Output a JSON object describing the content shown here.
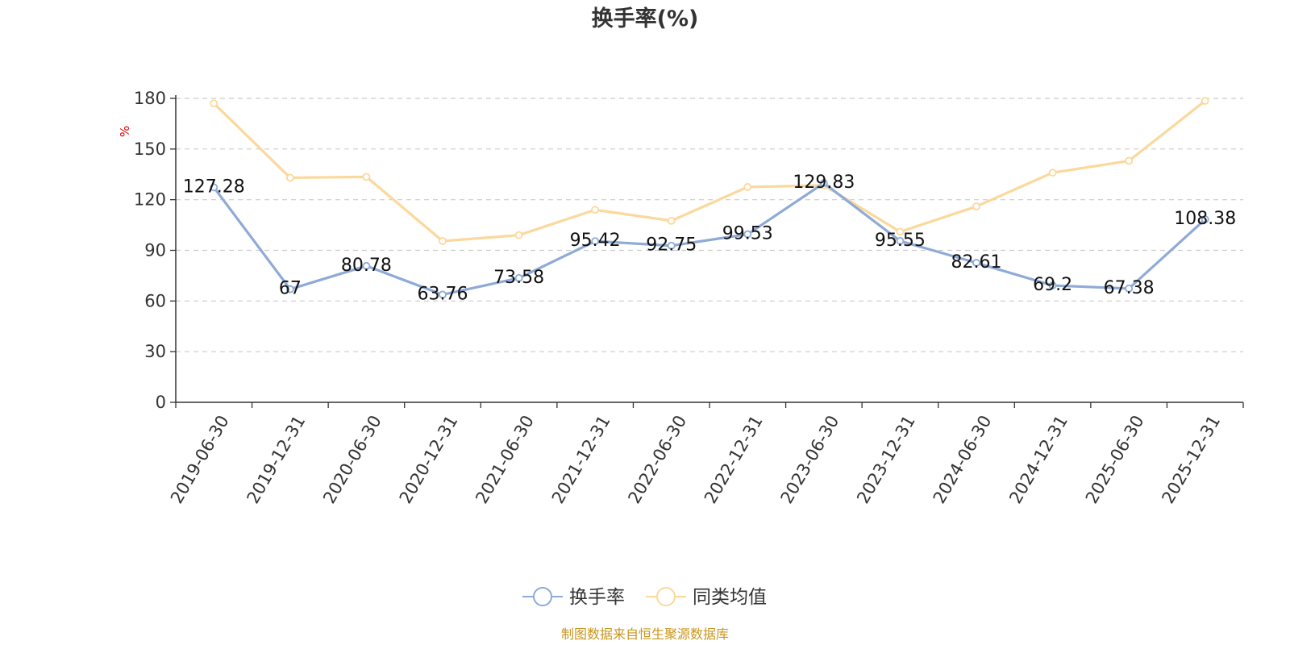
{
  "chart_data": {
    "type": "line",
    "title": "换手率(%)",
    "ylabel": "%",
    "xlabel": "",
    "ylim": [
      0,
      180
    ],
    "yticks": [
      0,
      30,
      60,
      90,
      120,
      150,
      180
    ],
    "grid": true,
    "legend_position": "bottom-center",
    "categories": [
      "2019-06-30",
      "2019-12-31",
      "2020-06-30",
      "2020-12-31",
      "2021-06-30",
      "2021-12-31",
      "2022-06-30",
      "2022-12-31",
      "2023-06-30",
      "2023-12-31",
      "2024-06-30",
      "2024-12-31",
      "2025-06-30",
      "2025-12-31"
    ],
    "series": [
      {
        "name": "换手率",
        "color": "#8eaad6",
        "show_labels": true,
        "values": [
          127.28,
          67,
          80.78,
          63.76,
          73.58,
          95.42,
          92.75,
          99.53,
          129.83,
          95.55,
          82.61,
          69.2,
          67.38,
          108.38
        ],
        "labels": [
          "127.28",
          "67",
          "80.78",
          "63.76",
          "73.58",
          "95.42",
          "92.75",
          "99.53",
          "129.83",
          "95.55",
          "82.61",
          "69.2",
          "67.38",
          "108.38"
        ]
      },
      {
        "name": "同类均值",
        "color": "#fbd89b",
        "show_labels": false,
        "values": [
          177,
          133,
          133.5,
          95.5,
          99,
          114,
          107.5,
          127.5,
          128.5,
          101,
          116,
          136,
          143,
          178.5
        ]
      }
    ]
  },
  "footer": {
    "source": "制图数据来自恒生聚源数据库"
  }
}
